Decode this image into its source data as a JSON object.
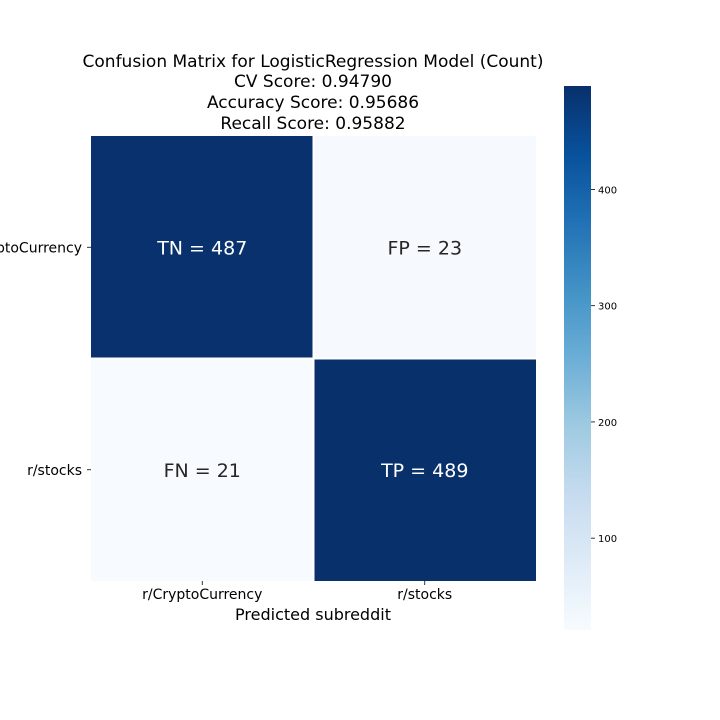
{
  "chart_data": {
    "type": "heatmap",
    "title_lines": [
      "Confusion Matrix for LogisticRegression Model (Count)",
      "CV Score: 0.94790",
      "Accuracy Score: 0.95686",
      "Recall Score: 0.95882"
    ],
    "xlabel": "Predicted subreddit",
    "ylabel": "",
    "x_categories": [
      "r/CryptoCurrency",
      "r/stocks"
    ],
    "y_categories": [
      "r/CryptoCurrency",
      "r/stocks"
    ],
    "values": [
      [
        487,
        23
      ],
      [
        21,
        489
      ]
    ],
    "annotations": [
      [
        "TN = 487",
        "FP = 23"
      ],
      [
        "FN = 21",
        "TP = 489"
      ]
    ],
    "colormap": "Blues",
    "colorbar": {
      "min": 21,
      "max": 489,
      "ticks": [
        100,
        200,
        300,
        400
      ]
    },
    "grid": false
  },
  "colors": {
    "low": "#f7fbff",
    "high": "#08306b",
    "text_on_dark": "#ffffff",
    "text_on_light": "#262626"
  }
}
